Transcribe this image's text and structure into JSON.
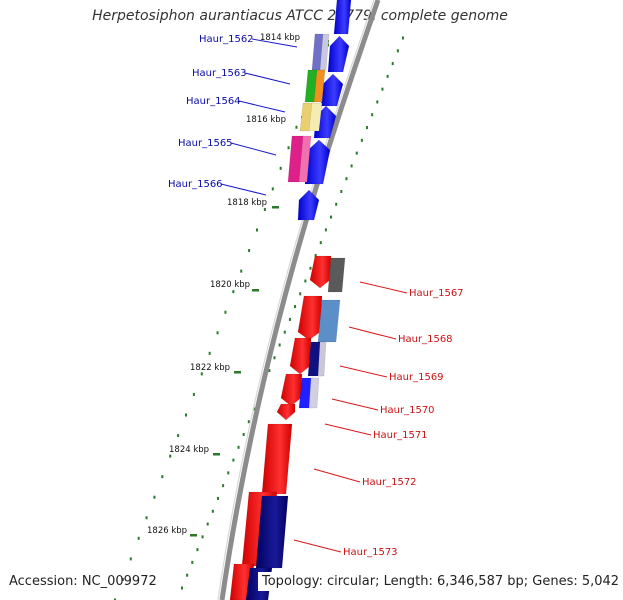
{
  "title": "Herpetosiphon aurantiacus ATCC 23779, complete genome",
  "accession": "Accession: NC_009972",
  "summary": "Topology: circular; Length: 6,346,587 bp; Genes: 5,042",
  "colors": {
    "backbone": "#8c8c8c",
    "tick": "#2a7a2a",
    "forward_gene": "#1414ff",
    "reverse_gene": "#ff1414",
    "left_label": "#0a0aa8",
    "right_label": "#c81414"
  },
  "kbp_markers": [
    "1814 kbp",
    "1816 kbp",
    "1818 kbp",
    "1820 kbp",
    "1822 kbp",
    "1824 kbp",
    "1826 kbp"
  ],
  "genes_left": [
    "Haur_1562",
    "Haur_1563",
    "Haur_1564",
    "Haur_1565",
    "Haur_1566"
  ],
  "genes_right": [
    "Haur_1567",
    "Haur_1568",
    "Haur_1569",
    "Haur_1570",
    "Haur_1571",
    "Haur_1572",
    "Haur_1573"
  ]
}
